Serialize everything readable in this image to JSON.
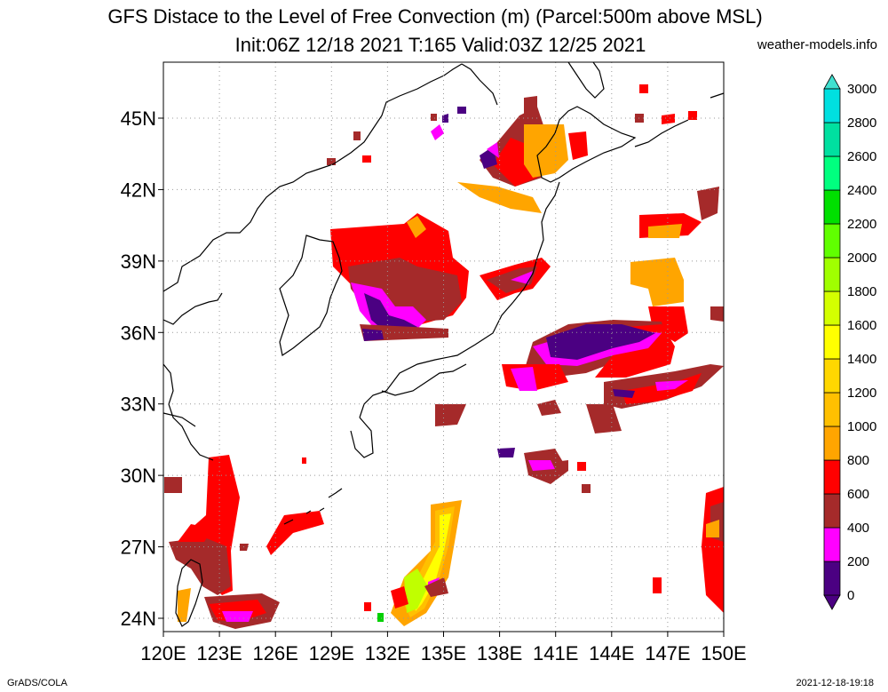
{
  "title": {
    "line1": "GFS Distace to the Level of Free Convection (m) (Parcel:500m above MSL)",
    "line2": "Init:06Z 12/18 2021 T:165 Valid:03Z 12/25 2021",
    "site": "weather-models.info"
  },
  "footer": {
    "left": "GrADS/COLA",
    "right": "2021-12-18-19:18"
  },
  "axes": {
    "lat_labels": [
      "45N",
      "42N",
      "39N",
      "36N",
      "33N",
      "30N",
      "27N",
      "24N"
    ],
    "lat_values": [
      45,
      42,
      39,
      36,
      33,
      30,
      27,
      24
    ],
    "lon_labels": [
      "120E",
      "123E",
      "126E",
      "129E",
      "132E",
      "135E",
      "138E",
      "141E",
      "144E",
      "147E",
      "150E"
    ],
    "lon_values": [
      120,
      123,
      126,
      129,
      132,
      135,
      138,
      141,
      144,
      147,
      150
    ],
    "lon_range": [
      120,
      150
    ],
    "lat_range": [
      22.5,
      47.5
    ],
    "grid": "dotted"
  },
  "colorbar": {
    "labels": [
      "0",
      "200",
      "400",
      "600",
      "800",
      "1000",
      "1200",
      "1400",
      "1600",
      "1800",
      "2000",
      "2200",
      "2400",
      "2600",
      "2800",
      "3000"
    ],
    "colors": [
      "#4b0082",
      "#ff00ff",
      "#a52a2a",
      "#ff0000",
      "#ffa500",
      "#ffc000",
      "#ffd700",
      "#ffff00",
      "#d4ff00",
      "#a0ff00",
      "#60ff00",
      "#00e000",
      "#00ff7f",
      "#00e0a0",
      "#00e0e0",
      "#40e0d0"
    ]
  },
  "legend_colors": {
    "purple": "#4b0082",
    "magenta": "#ff00ff",
    "brown": "#a52a2a",
    "red": "#ff0000",
    "orange": "#ffa500",
    "gold": "#ffc000",
    "yellow": "#ffff00",
    "yellowgreen": "#c0ff00",
    "green": "#00d000"
  }
}
